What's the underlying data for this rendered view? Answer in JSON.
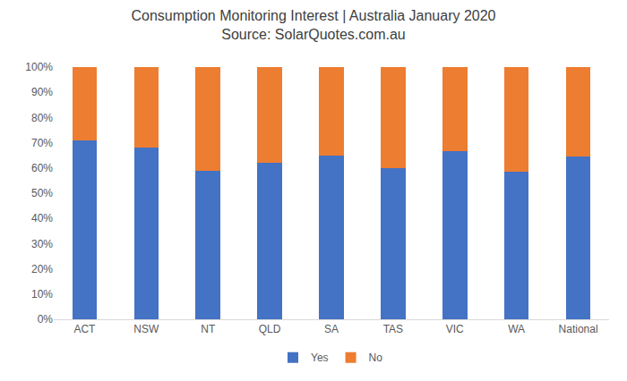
{
  "chart_data": {
    "type": "bar",
    "title": "Consumption Monitoring Interest | Australia January 2020",
    "subtitle": "Source: SolarQuotes.com.au",
    "categories": [
      "ACT",
      "NSW",
      "NT",
      "QLD",
      "SA",
      "TAS",
      "VIC",
      "WA",
      "National"
    ],
    "series": [
      {
        "name": "Yes",
        "color": "#4472c4",
        "values": [
          71,
          68,
          59,
          62,
          65,
          60,
          66.5,
          58.5,
          64.5
        ]
      },
      {
        "name": "No",
        "color": "#ed7d31",
        "values": [
          29,
          32,
          41,
          38,
          35,
          40,
          33.5,
          41.5,
          35.5
        ]
      }
    ],
    "stacked": true,
    "ylim": [
      0,
      100
    ],
    "yticks": [
      {
        "value": 0,
        "label": "0%"
      },
      {
        "value": 10,
        "label": "10%"
      },
      {
        "value": 20,
        "label": "20%"
      },
      {
        "value": 30,
        "label": "30%"
      },
      {
        "value": 40,
        "label": "40%"
      },
      {
        "value": 50,
        "label": "50%"
      },
      {
        "value": 60,
        "label": "60%"
      },
      {
        "value": 70,
        "label": "70%"
      },
      {
        "value": 80,
        "label": "80%"
      },
      {
        "value": 90,
        "label": "90%"
      },
      {
        "value": 100,
        "label": "100%"
      }
    ],
    "grid": false,
    "legend": "bottom"
  }
}
